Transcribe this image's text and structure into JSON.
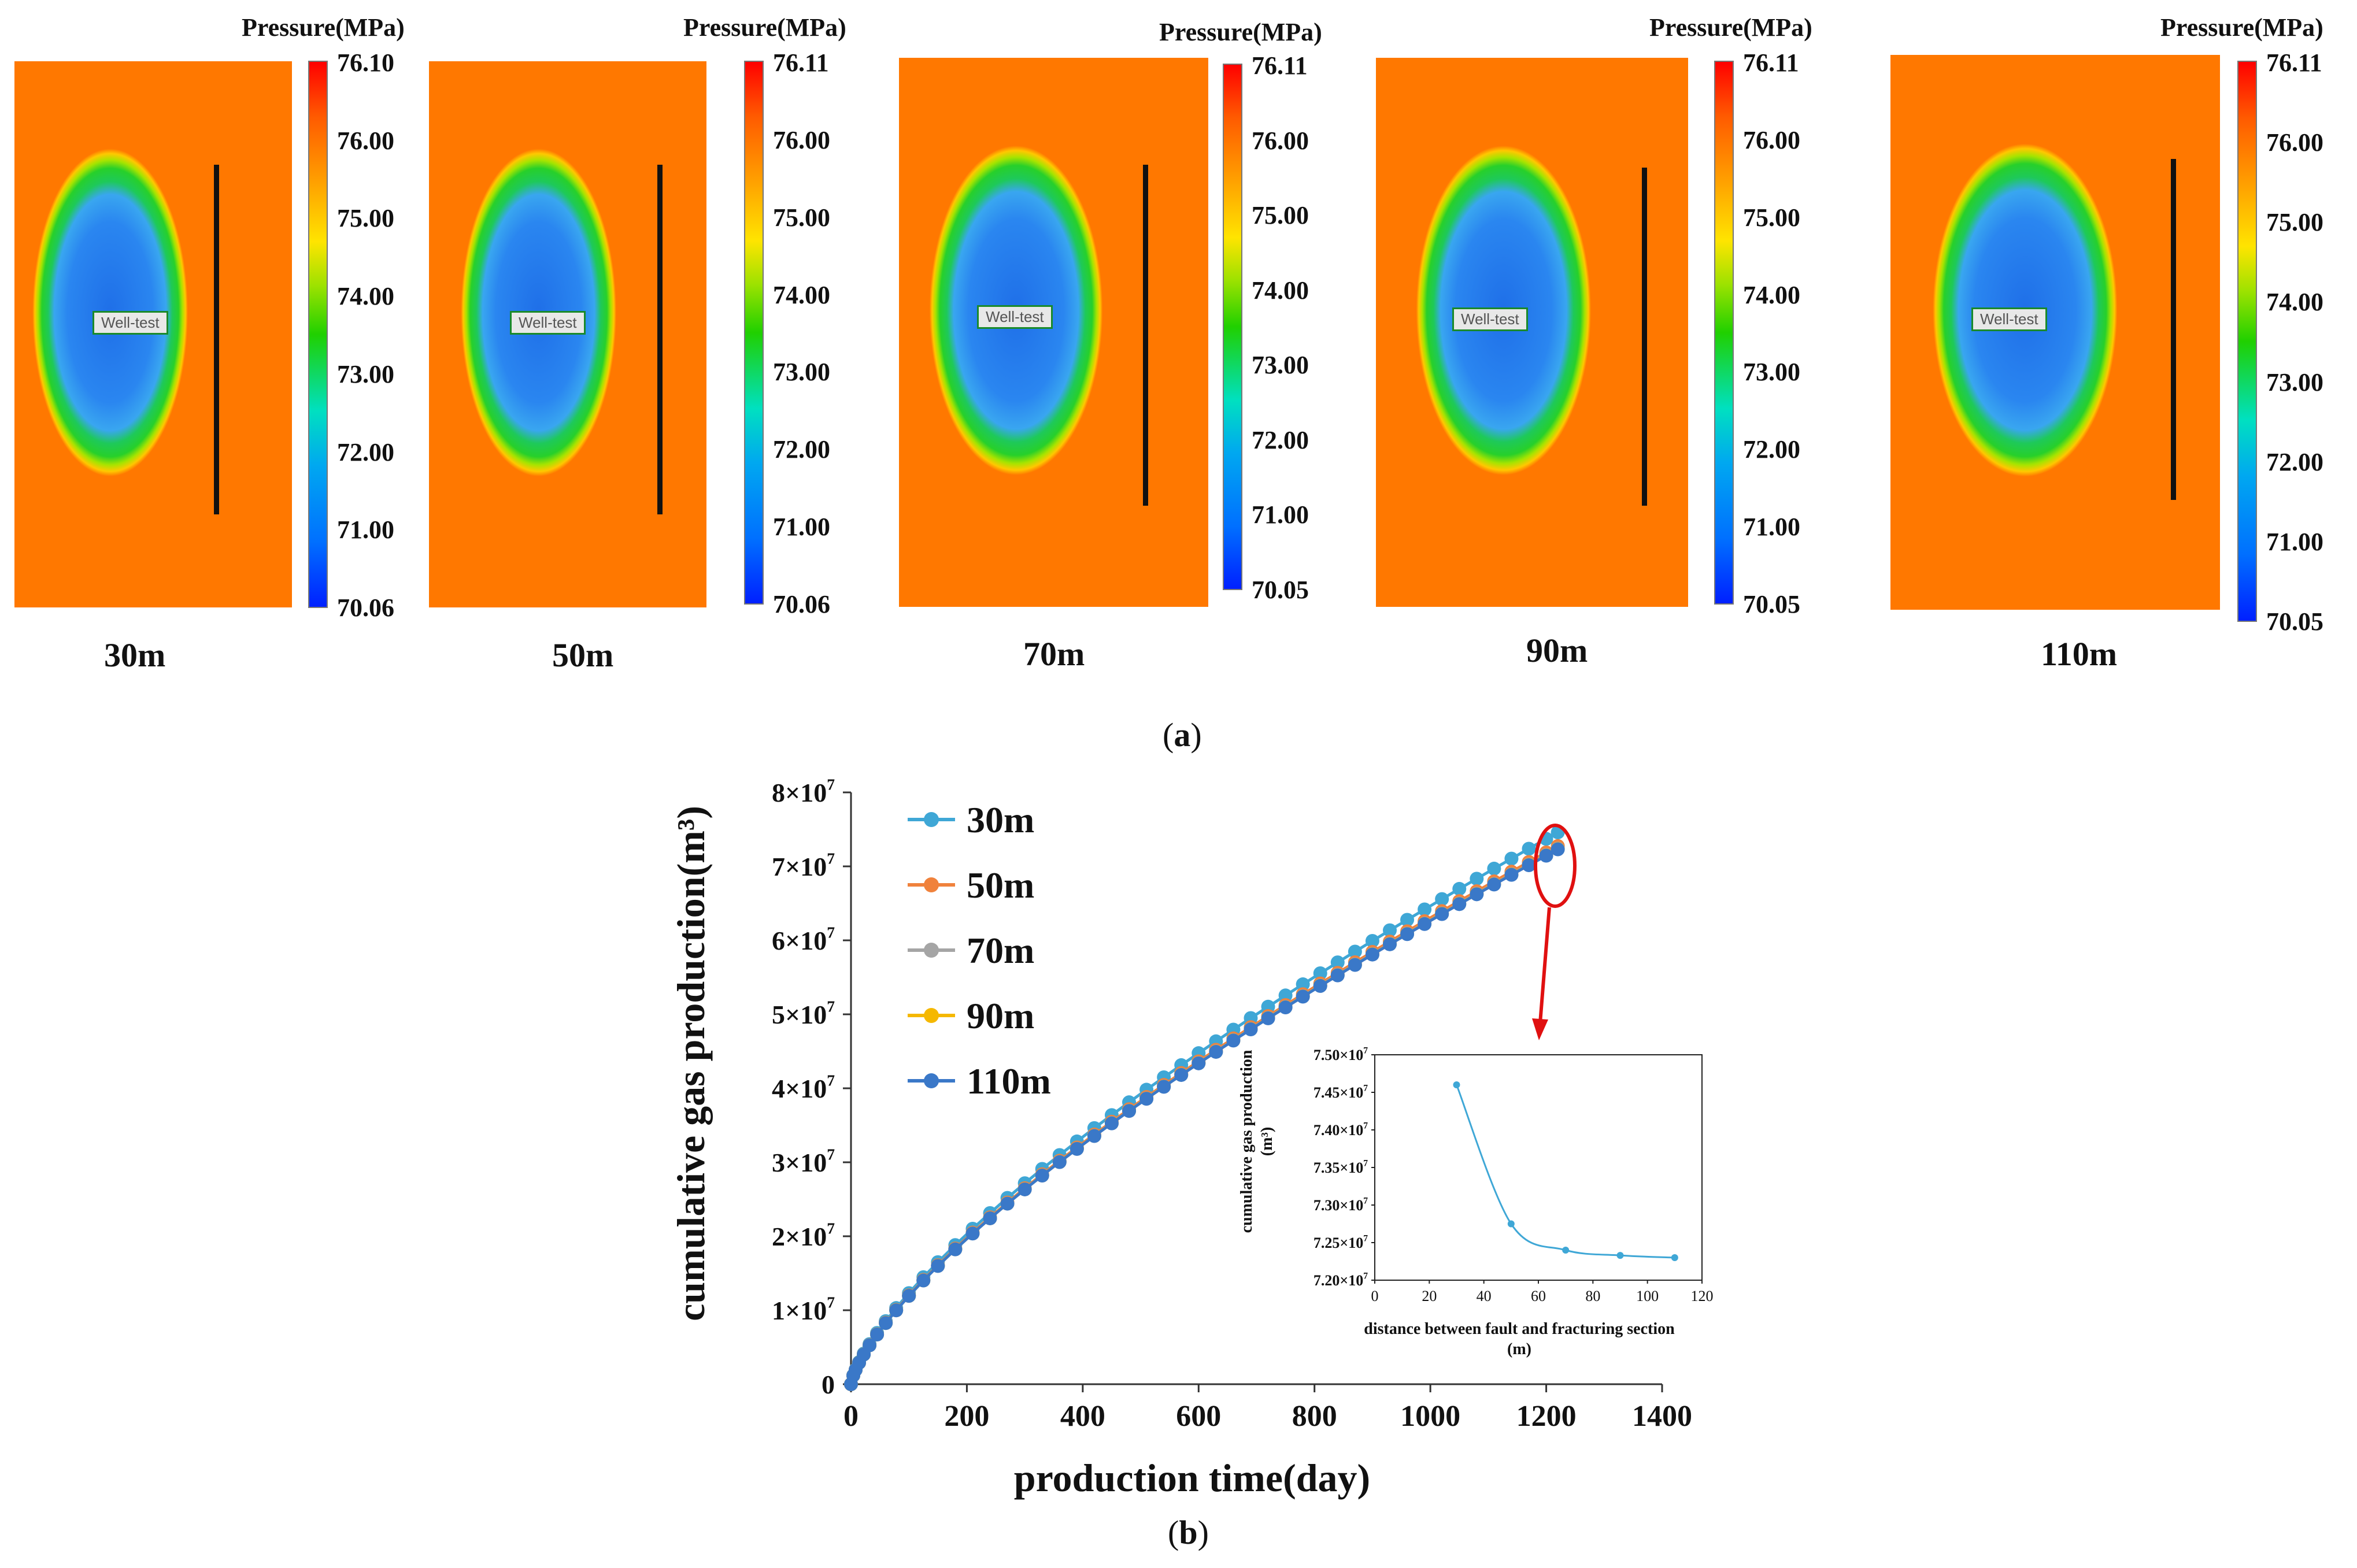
{
  "figure_a": {
    "caption_letter": "a",
    "colorbar_title": "Pressure(MPa)",
    "panels": [
      {
        "distance": "30m",
        "ticks": [
          "76.10",
          "76.00",
          "75.00",
          "74.00",
          "73.00",
          "72.00",
          "71.00",
          "70.06"
        ],
        "well_label": "Well-test"
      },
      {
        "distance": "50m",
        "ticks": [
          "76.11",
          "76.00",
          "75.00",
          "74.00",
          "73.00",
          "72.00",
          "71.00",
          "70.06"
        ],
        "well_label": "Well-test"
      },
      {
        "distance": "70m",
        "ticks": [
          "76.11",
          "76.00",
          "75.00",
          "74.00",
          "73.00",
          "72.00",
          "71.00",
          "70.05"
        ],
        "well_label": "Well-test"
      },
      {
        "distance": "90m",
        "ticks": [
          "76.11",
          "76.00",
          "75.00",
          "74.00",
          "73.00",
          "72.00",
          "71.00",
          "70.05"
        ],
        "well_label": "Well-test"
      },
      {
        "distance": "110m",
        "ticks": [
          "76.11",
          "76.00",
          "75.00",
          "74.00",
          "73.00",
          "72.00",
          "71.00",
          "70.05"
        ],
        "well_label": "Well-test"
      }
    ]
  },
  "figure_b": {
    "caption_letter": "b"
  },
  "colors": {
    "s30": "#3fa7d6",
    "s50": "#f0823c",
    "s70": "#a5a5a5",
    "s90": "#f5b800",
    "s110": "#3a78c8",
    "highlight": "#e01010"
  },
  "chart_data": [
    {
      "type": "line",
      "title": "",
      "xlabel": "production time(day)",
      "ylabel": "cumulative gas production(m³)",
      "xlim": [
        0,
        1400
      ],
      "ylim": [
        0,
        80000000
      ],
      "xticks": [
        "0",
        "200",
        "400",
        "600",
        "800",
        "1000",
        "1200",
        "1400"
      ],
      "yticks": [
        {
          "base": "0",
          "exp": ""
        },
        {
          "base": "1×10",
          "exp": "7"
        },
        {
          "base": "2×10",
          "exp": "7"
        },
        {
          "base": "3×10",
          "exp": "7"
        },
        {
          "base": "4×10",
          "exp": "7"
        },
        {
          "base": "5×10",
          "exp": "7"
        },
        {
          "base": "6×10",
          "exp": "7"
        },
        {
          "base": "7×10",
          "exp": "7"
        },
        {
          "base": "8×10",
          "exp": "7"
        }
      ],
      "legend_position": "top-left",
      "x": [
        0,
        4,
        8,
        14,
        22,
        32,
        45,
        60,
        78,
        100,
        125,
        150,
        180,
        210,
        240,
        270,
        300,
        330,
        360,
        390,
        420,
        450,
        480,
        510,
        540,
        570,
        600,
        630,
        660,
        690,
        720,
        750,
        780,
        810,
        840,
        870,
        900,
        930,
        960,
        990,
        1020,
        1050,
        1080,
        1110,
        1140,
        1170,
        1200,
        1220
      ],
      "series": [
        {
          "name": "30m",
          "final": 74600000
        },
        {
          "name": "50m",
          "final": 72750000
        },
        {
          "name": "70m",
          "final": 72400000
        },
        {
          "name": "90m",
          "final": 72330000
        },
        {
          "name": "110m",
          "final": 72300000
        }
      ]
    },
    {
      "type": "line",
      "title": "",
      "xlabel": "distance between fault and fracturing section (m)",
      "ylabel": "cumulative gas production (m³)",
      "xlim": [
        0,
        120
      ],
      "ylim": [
        72000000,
        75000000
      ],
      "xticks": [
        "0",
        "20",
        "40",
        "60",
        "80",
        "100",
        "120"
      ],
      "yticks": [
        {
          "base": "7.20×10",
          "exp": "7"
        },
        {
          "base": "7.25×10",
          "exp": "7"
        },
        {
          "base": "7.30×10",
          "exp": "7"
        },
        {
          "base": "7.35×10",
          "exp": "7"
        },
        {
          "base": "7.40×10",
          "exp": "7"
        },
        {
          "base": "7.45×10",
          "exp": "7"
        },
        {
          "base": "7.50×10",
          "exp": "7"
        }
      ],
      "x": [
        30,
        50,
        70,
        90,
        110
      ],
      "values": [
        74600000,
        72750000,
        72400000,
        72330000,
        72300000
      ]
    }
  ]
}
